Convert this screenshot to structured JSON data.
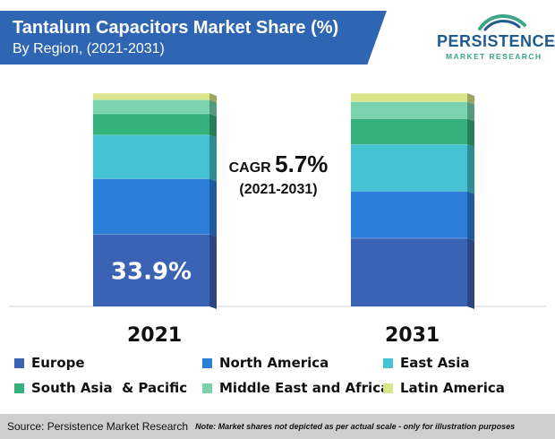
{
  "header": {
    "title": "Tantalum Capacitors Market Share (%)",
    "subtitle": "By Region, (2021-2031)"
  },
  "logo": {
    "name": "PERSISTENCE",
    "tagline": "MARKET RESEARCH"
  },
  "cagr": {
    "label": "CAGR",
    "value": "5.7%",
    "period": "(2021-2031)"
  },
  "colors": {
    "Europe": "#3b63b5",
    "North America": "#2b7fd7",
    "East Asia": "#45c3d2",
    "South Asia  & Pacific": "#34b27c",
    "Middle East and Africa": "#7ad3ad",
    "Latin America": "#dae58a"
  },
  "chart_data": {
    "type": "bar",
    "stacked": true,
    "categories": [
      "2021",
      "2031"
    ],
    "series": [
      {
        "name": "Europe",
        "values": [
          33.9,
          32.0
        ]
      },
      {
        "name": "North America",
        "values": [
          26.0,
          22.0
        ]
      },
      {
        "name": "East Asia",
        "values": [
          20.5,
          22.0
        ]
      },
      {
        "name": "South Asia  & Pacific",
        "values": [
          10.0,
          12.0
        ]
      },
      {
        "name": "Middle East and Africa",
        "values": [
          6.5,
          8.0
        ]
      },
      {
        "name": "Latin America",
        "values": [
          3.1,
          4.0
        ]
      }
    ],
    "data_labels": [
      {
        "category": "2021",
        "series": "Europe",
        "text": "33.9%"
      }
    ],
    "ylim": [
      0,
      100
    ],
    "legend_position": "bottom"
  },
  "footer": {
    "source": "Source: Persistence Market Research",
    "note": "Note: Market shares not depicted as per actual scale - only for illustration purposes"
  }
}
